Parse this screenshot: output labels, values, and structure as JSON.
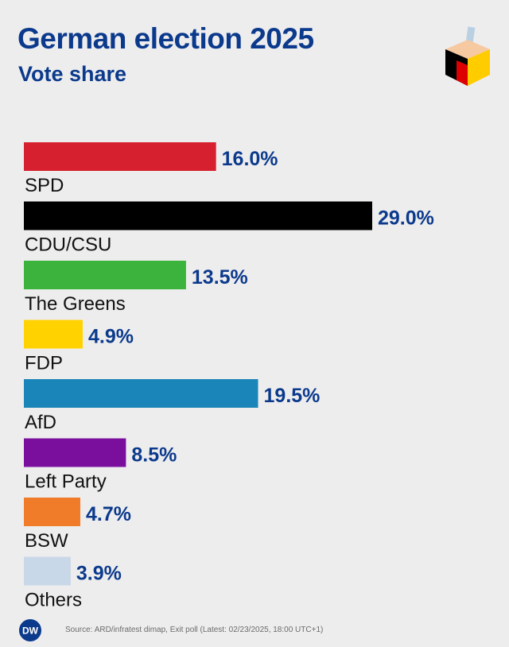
{
  "header": {
    "title": "German election 2025",
    "subtitle": "Vote share"
  },
  "footer": {
    "logo_text": "DW",
    "source": "Source: ARD/infratest dimap, Exit poll (Latest: 02/23/2025, 18:00 UTC+1)"
  },
  "colors": {
    "text": "#0b3a8c",
    "label": "#111111"
  },
  "chart_data": {
    "type": "bar",
    "orientation": "horizontal",
    "title": "German election 2025",
    "subtitle": "Vote share",
    "categories": [
      "SPD",
      "CDU/CSU",
      "The Greens",
      "FDP",
      "AfD",
      "Left Party",
      "BSW",
      "Others"
    ],
    "values": [
      16.0,
      29.0,
      13.5,
      4.9,
      19.5,
      8.5,
      4.7,
      3.9
    ],
    "value_labels": [
      "16.0%",
      "29.0%",
      "13.5%",
      "4.9%",
      "19.5%",
      "8.5%",
      "4.7%",
      "3.9%"
    ],
    "colors": [
      "#d7202f",
      "#000000",
      "#3cb33c",
      "#ffd200",
      "#1a85b8",
      "#7a0f9e",
      "#f07c2a",
      "#c8d8e8"
    ],
    "unit": "%",
    "xlim": [
      0,
      29.0
    ],
    "grid": false,
    "legend": "none"
  }
}
